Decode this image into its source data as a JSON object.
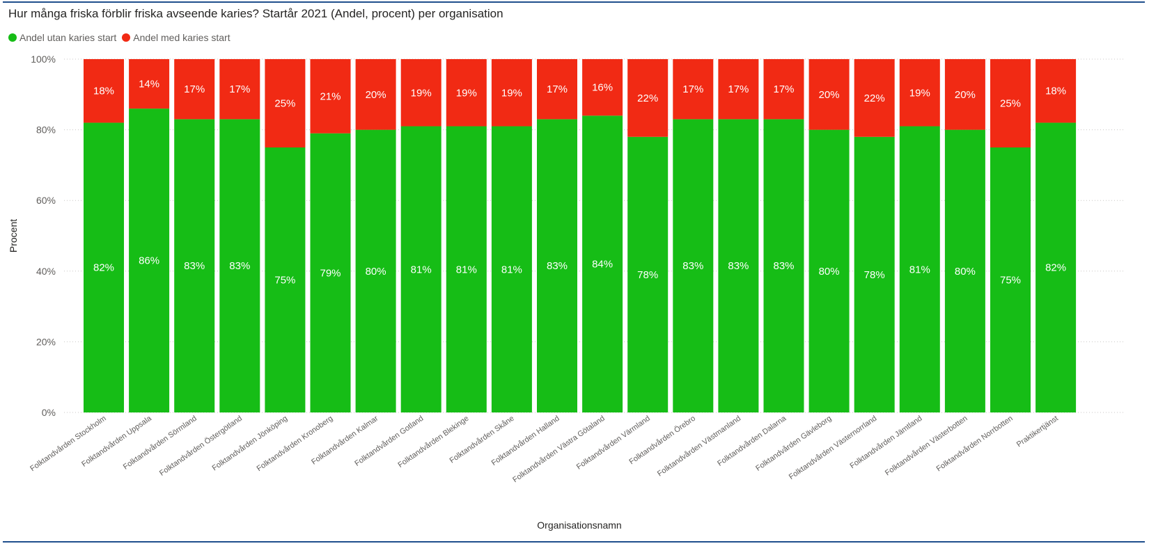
{
  "header": {
    "title": "Hur många friska förblir friska avseende karies? Startår 2021 (Andel, procent) per organisation"
  },
  "colors": {
    "without_caries": "#16bd16",
    "with_caries": "#f12a14",
    "gridline": "#c8c6c4",
    "rule": "#1f4e8c"
  },
  "chart_data": {
    "type": "bar",
    "stacked": "percent",
    "title": "Hur många friska förblir friska avseende karies? Startår 2021 (Andel, procent) per organisation",
    "xlabel": "Organisationsnamn",
    "ylabel": "Procent",
    "ylim": [
      0,
      100
    ],
    "yticks": [
      "0%",
      "20%",
      "40%",
      "60%",
      "80%",
      "100%"
    ],
    "grid": "horizontal-dotted",
    "legend_position": "top-left",
    "categories": [
      "Folktandvården Stockholm",
      "Folktandvården Uppsala",
      "Folktandvården Sörmland",
      "Folktandvården Östergötland",
      "Folktandvården Jönköping",
      "Folktandvården Kronoberg",
      "Folktandvården Kalmar",
      "Folktandvården Gotland",
      "Folktandvården Blekinge",
      "Folktandvården Skåne",
      "Folktandvården Halland",
      "Folktandvården Västra Götaland",
      "Folktandvården Värmland",
      "Folktandvården Örebro",
      "Folktandvården Västmanland",
      "Folktandvården Dalarna",
      "Folktandvården Gävleborg",
      "Folktandvården Västernorrland",
      "Folktandvården Jämtland",
      "Folktandvården Västerbotten",
      "Folktandvården Norrbotten",
      "Praktikertjänst"
    ],
    "series": [
      {
        "name": "Andel utan karies start",
        "color": "#16bd16",
        "values": [
          82,
          86,
          83,
          83,
          75,
          79,
          80,
          81,
          81,
          81,
          83,
          84,
          78,
          83,
          83,
          83,
          80,
          78,
          81,
          80,
          75,
          82
        ]
      },
      {
        "name": "Andel med karies start",
        "color": "#f12a14",
        "values": [
          18,
          14,
          17,
          17,
          25,
          21,
          20,
          19,
          19,
          19,
          17,
          16,
          22,
          17,
          17,
          17,
          20,
          22,
          19,
          20,
          25,
          18
        ]
      }
    ]
  }
}
